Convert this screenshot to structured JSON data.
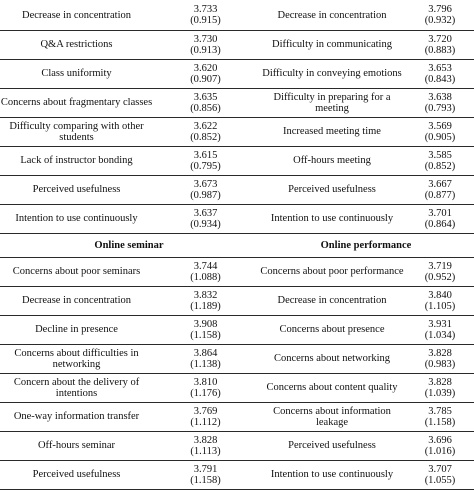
{
  "top_section": {
    "rows": [
      {
        "left_label": "Decrease in concentration",
        "left_mean": "3.733",
        "left_sd": "(0.915)",
        "right_label": "Decrease in concentration",
        "right_mean": "3.796",
        "right_sd": "(0.932)"
      },
      {
        "left_label": "Q&A restrictions",
        "left_mean": "3.730",
        "left_sd": "(0.913)",
        "right_label": "Difficulty in communicating",
        "right_mean": "3.720",
        "right_sd": "(0.883)"
      },
      {
        "left_label": "Class uniformity",
        "left_mean": "3.620",
        "left_sd": "(0.907)",
        "right_label": "Difficulty in conveying emotions",
        "right_mean": "3.653",
        "right_sd": "(0.843)"
      },
      {
        "left_label": "Concerns about fragmentary classes",
        "left_mean": "3.635",
        "left_sd": "(0.856)",
        "right_label": "Difficulty in preparing for a meeting",
        "right_mean": "3.638",
        "right_sd": "(0.793)"
      },
      {
        "left_label": "Difficulty comparing with other students",
        "left_mean": "3.622",
        "left_sd": "(0.852)",
        "right_label": "Increased meeting time",
        "right_mean": "3.569",
        "right_sd": "(0.905)"
      },
      {
        "left_label": "Lack of instructor bonding",
        "left_mean": "3.615",
        "left_sd": "(0.795)",
        "right_label": "Off-hours meeting",
        "right_mean": "3.585",
        "right_sd": "(0.852)"
      },
      {
        "left_label": "Perceived usefulness",
        "left_mean": "3.673",
        "left_sd": "(0.987)",
        "right_label": "Perceived usefulness",
        "right_mean": "3.667",
        "right_sd": "(0.877)"
      },
      {
        "left_label": "Intention to use continuously",
        "left_mean": "3.637",
        "left_sd": "(0.934)",
        "right_label": "Intention to use continuously",
        "right_mean": "3.701",
        "right_sd": "(0.864)"
      }
    ]
  },
  "section_titles": {
    "left": "Online seminar",
    "right": "Online performance"
  },
  "bottom_section": {
    "rows": [
      {
        "left_label": "Concerns about poor seminars",
        "left_mean": "3.744",
        "left_sd": "(1.088)",
        "right_label": "Concerns about poor performance",
        "right_mean": "3.719",
        "right_sd": "(0.952)"
      },
      {
        "left_label": "Decrease in concentration",
        "left_mean": "3.832",
        "left_sd": "(1.189)",
        "right_label": "Decrease in concentration",
        "right_mean": "3.840",
        "right_sd": "(1.105)"
      },
      {
        "left_label": "Decline in presence",
        "left_mean": "3.908",
        "left_sd": "(1.158)",
        "right_label": "Concerns about presence",
        "right_mean": "3.931",
        "right_sd": "(1.034)"
      },
      {
        "left_label": "Concerns about difficulties in networking",
        "left_mean": "3.864",
        "left_sd": "(1.138)",
        "right_label": "Concerns about networking",
        "right_mean": "3.828",
        "right_sd": "(0.983)"
      },
      {
        "left_label": "Concern about the delivery of intentions",
        "left_mean": "3.810",
        "left_sd": "(1.176)",
        "right_label": "Concerns about content quality",
        "right_mean": "3.828",
        "right_sd": "(1.039)"
      },
      {
        "left_label": "One-way information transfer",
        "left_mean": "3.769",
        "left_sd": "(1.112)",
        "right_label": "Concerns about information leakage",
        "right_mean": "3.785",
        "right_sd": "(1.158)"
      },
      {
        "left_label": "Off-hours seminar",
        "left_mean": "3.828",
        "left_sd": "(1.113)",
        "right_label": "Perceived usefulness",
        "right_mean": "3.696",
        "right_sd": "(1.016)"
      },
      {
        "left_label": "Perceived usefulness",
        "left_mean": "3.791",
        "left_sd": "(1.158)",
        "right_label": "Intention to use continuously",
        "right_mean": "3.707",
        "right_sd": "(1.055)"
      }
    ]
  }
}
